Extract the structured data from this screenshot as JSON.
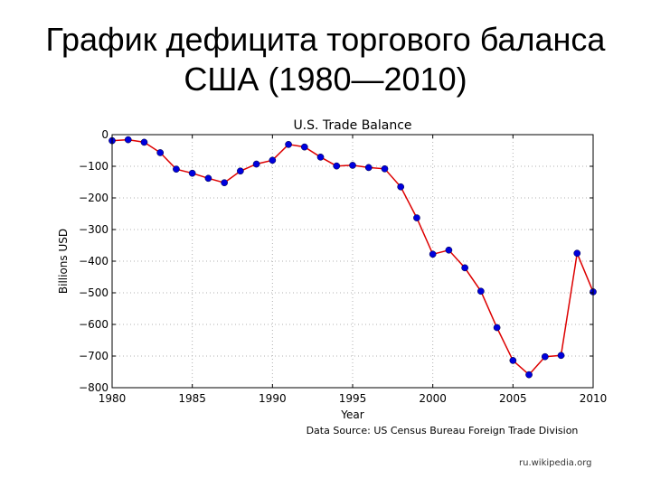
{
  "slide": {
    "title_line1": "График дефицита торгового баланса",
    "title_line2": "США (1980—2010)",
    "credit": "ru.wikipedia.org"
  },
  "colors": {
    "line": "#dd0000",
    "marker": "#0000dd",
    "axes": "#000000",
    "grid": "#b0b0b0"
  },
  "chart_data": {
    "type": "line",
    "title": "U.S. Trade Balance",
    "xlabel": "Year",
    "ylabel": "Billions USD",
    "source_note": "Data Source: US Census Bureau Foreign Trade Division",
    "xlim": [
      1980,
      2010
    ],
    "ylim": [
      -800,
      0
    ],
    "x_ticks": [
      1980,
      1985,
      1990,
      1995,
      2000,
      2005,
      2010
    ],
    "y_ticks": [
      0,
      -100,
      -200,
      -300,
      -400,
      -500,
      -600,
      -700,
      -800
    ],
    "y_tick_labels": [
      "0",
      "−100",
      "−200",
      "−300",
      "−400",
      "−500",
      "−600",
      "−700",
      "−800"
    ],
    "grid": true,
    "x_tick_labels": [
      "1980",
      "1985",
      "1990",
      "1995",
      "2000",
      "2005",
      "2010"
    ],
    "series": [
      {
        "x": [
          1980,
          1981,
          1982,
          1983,
          1984,
          1985,
          1986,
          1987,
          1988,
          1989,
          1990,
          1991,
          1992,
          1993,
          1994,
          1995,
          1996,
          1997,
          1998,
          1999,
          2000,
          2001,
          2002,
          2003,
          2004,
          2005,
          2006,
          2007,
          2008,
          2009,
          2010
        ],
        "values": [
          -19,
          -16,
          -24,
          -57,
          -109,
          -122,
          -138,
          -152,
          -115,
          -93,
          -81,
          -31,
          -39,
          -71,
          -99,
          -97,
          -104,
          -108,
          -165,
          -263,
          -378,
          -365,
          -421,
          -495,
          -610,
          -714,
          -759,
          -702,
          -698,
          -375,
          -497
        ]
      }
    ]
  }
}
